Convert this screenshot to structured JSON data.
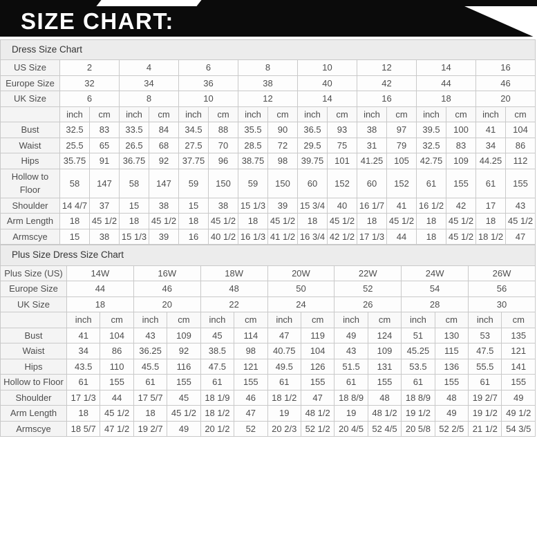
{
  "banner": {
    "title": "SIZE CHART:"
  },
  "colors": {
    "banner_bg": "#0b0b0b",
    "banner_text": "#ffffff",
    "table_title_bg": "#ececec",
    "label_column_bg": "#f4f4f4",
    "cell_bg": "#fdfdfd",
    "border": "#c9c9c9",
    "text": "#4d4d4d"
  },
  "tables": [
    {
      "title": "Dress Size Chart",
      "label_col_width": 86,
      "header_rows": [
        {
          "label": "US Size",
          "values": [
            "2",
            "4",
            "6",
            "8",
            "10",
            "12",
            "14",
            "16"
          ]
        },
        {
          "label": "Europe Size",
          "values": [
            "32",
            "34",
            "36",
            "38",
            "40",
            "42",
            "44",
            "46"
          ]
        },
        {
          "label": "UK Size",
          "values": [
            "6",
            "8",
            "10",
            "12",
            "14",
            "16",
            "18",
            "20"
          ]
        }
      ],
      "unit_labels": [
        "inch",
        "cm"
      ],
      "rows": [
        {
          "label": "Bust",
          "values": [
            "32.5",
            "83",
            "33.5",
            "84",
            "34.5",
            "88",
            "35.5",
            "90",
            "36.5",
            "93",
            "38",
            "97",
            "39.5",
            "100",
            "41",
            "104"
          ]
        },
        {
          "label": "Waist",
          "values": [
            "25.5",
            "65",
            "26.5",
            "68",
            "27.5",
            "70",
            "28.5",
            "72",
            "29.5",
            "75",
            "31",
            "79",
            "32.5",
            "83",
            "34",
            "86"
          ]
        },
        {
          "label": "Hips",
          "values": [
            "35.75",
            "91",
            "36.75",
            "92",
            "37.75",
            "96",
            "38.75",
            "98",
            "39.75",
            "101",
            "41.25",
            "105",
            "42.75",
            "109",
            "44.25",
            "112"
          ]
        },
        {
          "label": "Hollow to Floor",
          "values": [
            "58",
            "147",
            "58",
            "147",
            "59",
            "150",
            "59",
            "150",
            "60",
            "152",
            "60",
            "152",
            "61",
            "155",
            "61",
            "155"
          ]
        },
        {
          "label": "Shoulder",
          "values": [
            "14 4/7",
            "37",
            "15",
            "38",
            "15",
            "38",
            "15 1/3",
            "39",
            "15 3/4",
            "40",
            "16 1/7",
            "41",
            "16 1/2",
            "42",
            "17",
            "43"
          ]
        },
        {
          "label": "Arm Length",
          "values": [
            "18",
            "45 1/2",
            "18",
            "45 1/2",
            "18",
            "45 1/2",
            "18",
            "45 1/2",
            "18",
            "45 1/2",
            "18",
            "45 1/2",
            "18",
            "45 1/2",
            "18",
            "45 1/2"
          ]
        },
        {
          "label": "Armscye",
          "values": [
            "15",
            "38",
            "15 1/3",
            "39",
            "16",
            "40 1/2",
            "16 1/3",
            "41 1/2",
            "16 3/4",
            "42 1/2",
            "17 1/3",
            "44",
            "18",
            "45 1/2",
            "18 1/2",
            "47"
          ]
        }
      ]
    },
    {
      "title": "Plus Size Dress Size Chart",
      "label_col_width": 96,
      "header_rows": [
        {
          "label": "Plus Size (US)",
          "values": [
            "14W",
            "16W",
            "18W",
            "20W",
            "22W",
            "24W",
            "26W"
          ]
        },
        {
          "label": "Europe Size",
          "values": [
            "44",
            "46",
            "48",
            "50",
            "52",
            "54",
            "56"
          ]
        },
        {
          "label": "UK Size",
          "values": [
            "18",
            "20",
            "22",
            "24",
            "26",
            "28",
            "30"
          ]
        }
      ],
      "unit_labels": [
        "inch",
        "cm"
      ],
      "rows": [
        {
          "label": "Bust",
          "values": [
            "41",
            "104",
            "43",
            "109",
            "45",
            "114",
            "47",
            "119",
            "49",
            "124",
            "51",
            "130",
            "53",
            "135"
          ]
        },
        {
          "label": "Waist",
          "values": [
            "34",
            "86",
            "36.25",
            "92",
            "38.5",
            "98",
            "40.75",
            "104",
            "43",
            "109",
            "45.25",
            "115",
            "47.5",
            "121"
          ]
        },
        {
          "label": "Hips",
          "values": [
            "43.5",
            "110",
            "45.5",
            "116",
            "47.5",
            "121",
            "49.5",
            "126",
            "51.5",
            "131",
            "53.5",
            "136",
            "55.5",
            "141"
          ]
        },
        {
          "label": "Hollow to Floor",
          "values": [
            "61",
            "155",
            "61",
            "155",
            "61",
            "155",
            "61",
            "155",
            "61",
            "155",
            "61",
            "155",
            "61",
            "155"
          ]
        },
        {
          "label": "Shoulder",
          "values": [
            "17 1/3",
            "44",
            "17 5/7",
            "45",
            "18 1/9",
            "46",
            "18 1/2",
            "47",
            "18 8/9",
            "48",
            "18 8/9",
            "48",
            "19 2/7",
            "49"
          ]
        },
        {
          "label": "Arm Length",
          "values": [
            "18",
            "45 1/2",
            "18",
            "45 1/2",
            "18 1/2",
            "47",
            "19",
            "48 1/2",
            "19",
            "48 1/2",
            "19 1/2",
            "49",
            "19 1/2",
            "49 1/2"
          ]
        },
        {
          "label": "Armscye",
          "values": [
            "18 5/7",
            "47 1/2",
            "19 2/7",
            "49",
            "20 1/2",
            "52",
            "20 2/3",
            "52 1/2",
            "20 4/5",
            "52 4/5",
            "20 5/8",
            "52 2/5",
            "21 1/2",
            "54 3/5"
          ]
        }
      ]
    }
  ]
}
